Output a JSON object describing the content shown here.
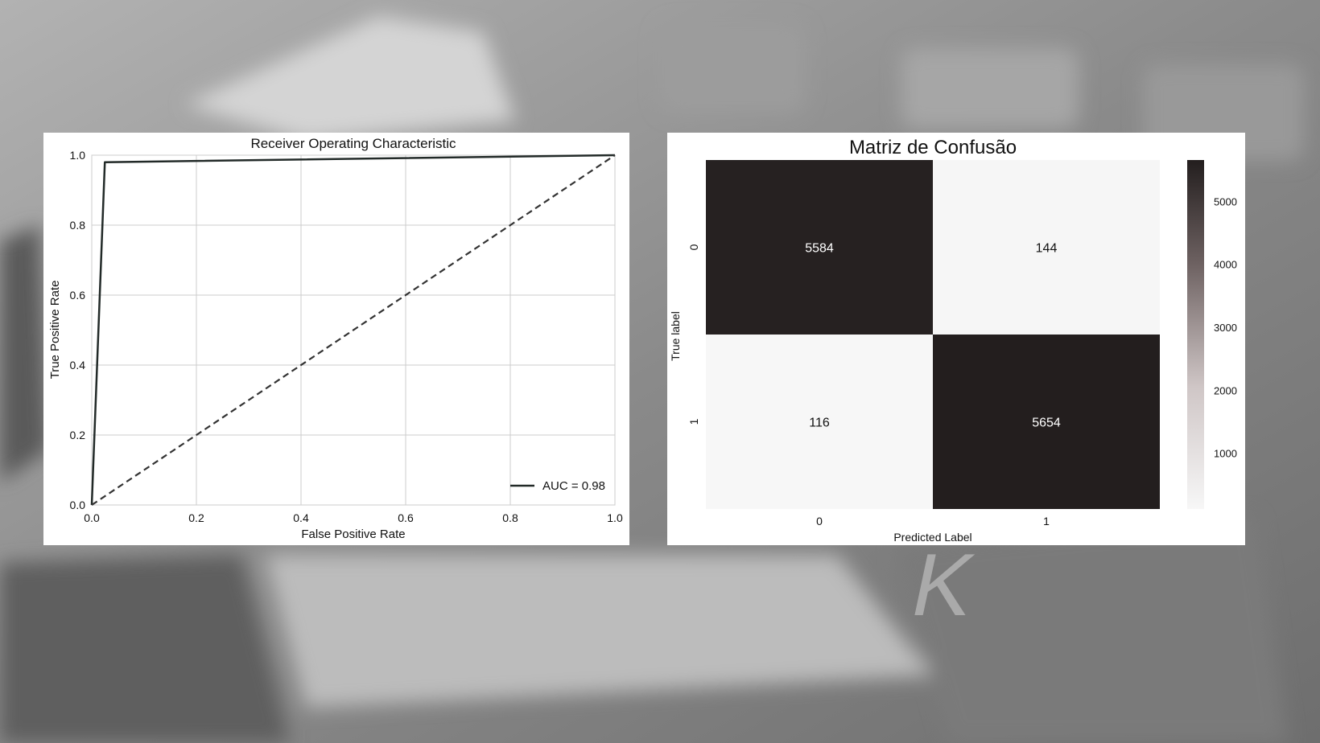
{
  "chart_data": [
    {
      "type": "line",
      "title": "Receiver Operating Characteristic",
      "xlabel": "False Positive Rate",
      "ylabel": "True Positive Rate",
      "xlim": [
        0,
        1
      ],
      "ylim": [
        0,
        1
      ],
      "xticks": [
        "0.0",
        "0.2",
        "0.4",
        "0.6",
        "0.8",
        "1.0"
      ],
      "yticks": [
        "0.0",
        "0.2",
        "0.4",
        "0.6",
        "0.8",
        "1.0"
      ],
      "grid": true,
      "legend_position": "lower-right",
      "series": [
        {
          "name": "AUC = 0.98",
          "style": "solid",
          "color": "#222a28",
          "x": [
            0.0,
            0.025,
            1.0
          ],
          "y": [
            0.0,
            0.98,
            1.0
          ]
        },
        {
          "style": "dashed",
          "color": "#333333",
          "x": [
            0.0,
            1.0
          ],
          "y": [
            0.0,
            1.0
          ]
        }
      ]
    },
    {
      "type": "heatmap",
      "title": "Matriz de Confusão",
      "xlabel": "Predicted Label",
      "ylabel": "True label",
      "x_categories": [
        "0",
        "1"
      ],
      "y_categories": [
        "0",
        "1"
      ],
      "values": [
        [
          5584,
          144
        ],
        [
          116,
          5654
        ]
      ],
      "value_labels": [
        [
          "5584",
          "144"
        ],
        [
          "116",
          "5654"
        ]
      ],
      "colorbar": {
        "ticks": [
          "1000",
          "2000",
          "3000",
          "4000",
          "5000"
        ],
        "min": 116,
        "max": 5654,
        "color_low": "#f7f7f7",
        "color_high": "#231e1e"
      }
    }
  ]
}
